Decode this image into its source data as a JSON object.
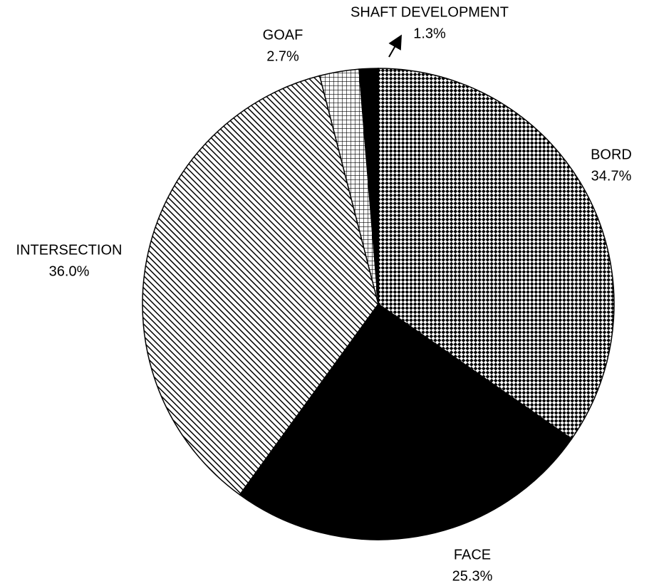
{
  "chart_data": {
    "type": "pie",
    "categories": [
      "BORD",
      "FACE",
      "INTERSECTION",
      "GOAF",
      "SHAFT DEVELOPMENT"
    ],
    "values": [
      34.7,
      25.3,
      36.0,
      2.7,
      1.3
    ],
    "value_labels": [
      "34.7%",
      "25.3%",
      "36.0%",
      "2.7%",
      "1.3%"
    ],
    "patterns": [
      "checker",
      "solid",
      "diagonal",
      "grid",
      "solid"
    ],
    "color": "#000000",
    "start_angle": 0,
    "direction": "clockwise"
  }
}
